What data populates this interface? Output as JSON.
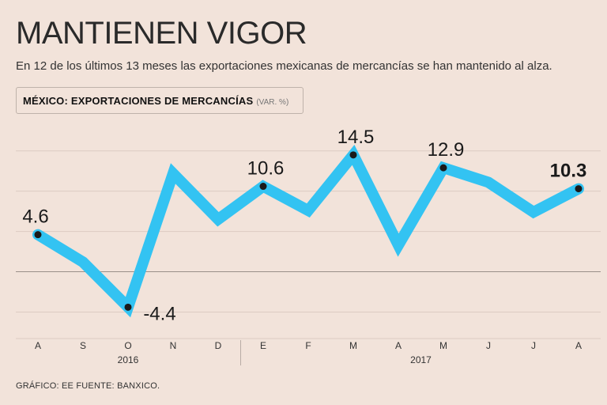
{
  "header": {
    "title": "MANTIENEN VIGOR",
    "subtitle": "En 12 de los últimos 13 meses las exportaciones mexicanas de mercancías se han mantenido al alza."
  },
  "chart_label": {
    "main": "MÉXICO: EXPORTACIONES DE MERCANCÍAS",
    "unit": "(VAR. %)"
  },
  "footer": {
    "credit": "GRÁFICO: EE  FUENTE: BANXICO."
  },
  "colors": {
    "background": "#f2e3da",
    "line": "#33c3f2",
    "point": "#1a1a1a",
    "grid": "#dccbc2",
    "zero_line": "#9a8f89"
  },
  "chart_data": {
    "type": "line",
    "title": "MÉXICO: EXPORTACIONES DE MERCANCÍAS",
    "ylabel": "(VAR. %)",
    "xlabel": "",
    "categories": [
      "A",
      "S",
      "O",
      "N",
      "D",
      "E",
      "F",
      "M",
      "A",
      "M",
      "J",
      "J",
      "A"
    ],
    "year_groups": [
      {
        "label": "2016",
        "start": 0,
        "end": 4
      },
      {
        "label": "2017",
        "start": 5,
        "end": 12
      }
    ],
    "series": [
      {
        "name": "Exportaciones de mercancías",
        "values": [
          4.6,
          1.2,
          -4.4,
          12.2,
          6.5,
          10.6,
          7.6,
          14.5,
          3.3,
          12.9,
          11.1,
          7.4,
          10.3
        ]
      }
    ],
    "labeled_points": [
      {
        "index": 0,
        "text": "4.6",
        "bold": false
      },
      {
        "index": 2,
        "text": "-4.4",
        "bold": false
      },
      {
        "index": 5,
        "text": "10.6",
        "bold": false
      },
      {
        "index": 7,
        "text": "14.5",
        "bold": false
      },
      {
        "index": 9,
        "text": "12.9",
        "bold": false
      },
      {
        "index": 12,
        "text": "10.3",
        "bold": true
      }
    ],
    "ylim": [
      -8,
      19
    ],
    "gridlines": [
      -5,
      5,
      10,
      15
    ],
    "zero_line": 0,
    "grid": true,
    "legend": "none"
  }
}
